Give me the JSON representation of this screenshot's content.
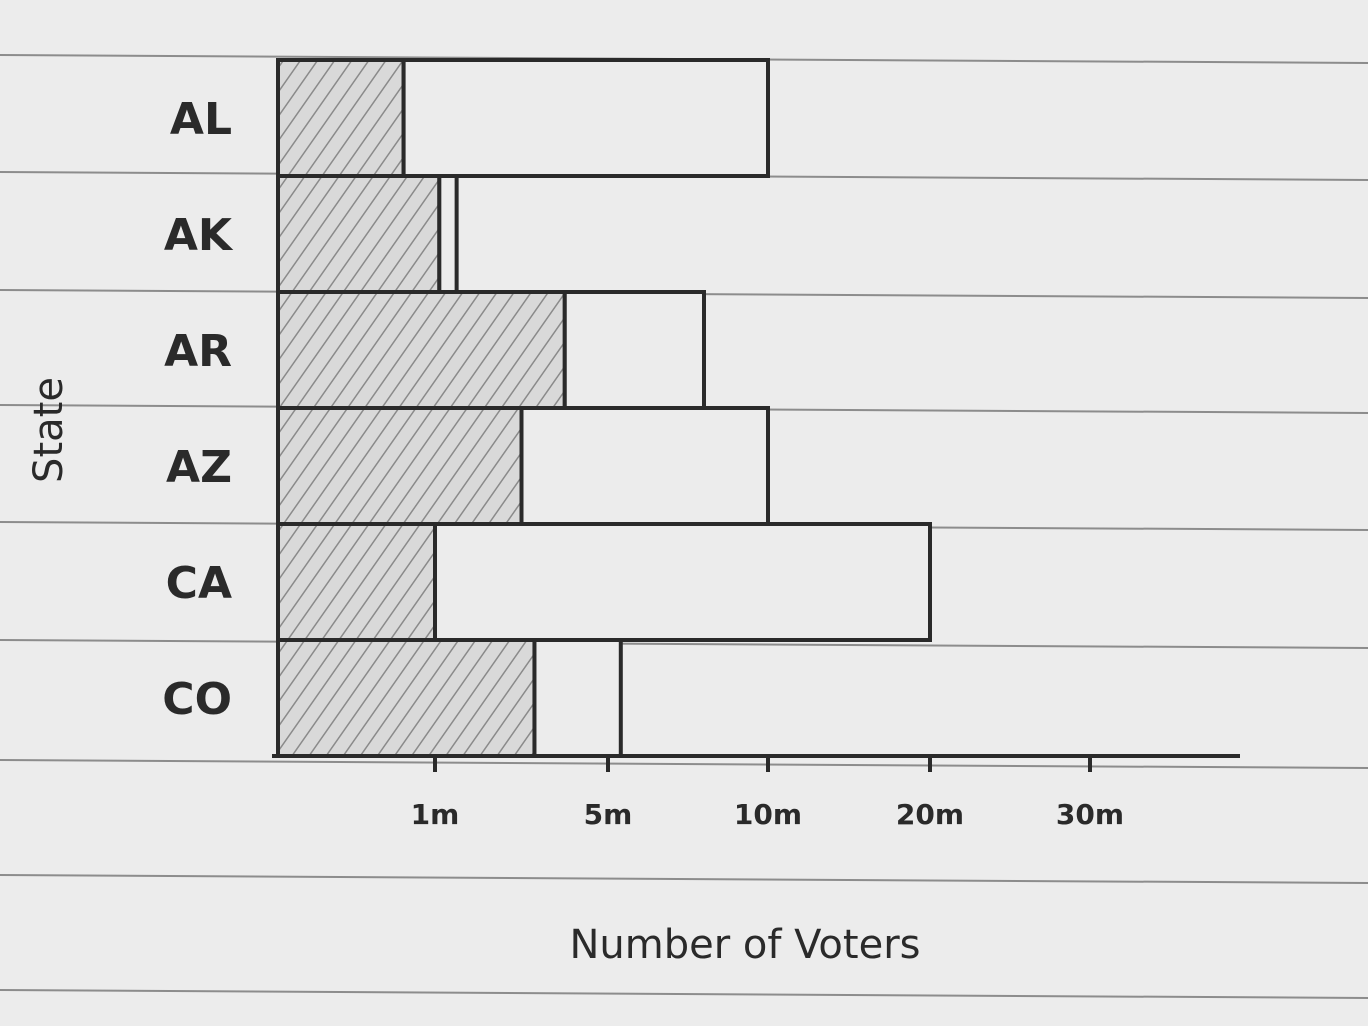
{
  "chart_data": {
    "type": "bar",
    "orientation": "horizontal",
    "stacked": true,
    "categories": [
      "AL",
      "AK",
      "AR",
      "AZ",
      "CA",
      "CO"
    ],
    "x_ticks": [
      "1m",
      "5m",
      "10m",
      "20m",
      "30m"
    ],
    "x_tick_values": [
      1,
      5,
      10,
      20,
      30
    ],
    "series": [
      {
        "values": [
          0.8,
          1.1,
          4.0,
          3.0,
          1.0,
          3.3
        ],
        "pattern": "hatched"
      },
      {
        "values": [
          9.2,
          0.4,
          4.0,
          7.0,
          19.0,
          2.1
        ],
        "pattern": "plain"
      }
    ],
    "totals": [
      10,
      1.5,
      8,
      10,
      20,
      5.4
    ],
    "xlabel": "Number of Voters",
    "ylabel": "State",
    "xlim": [
      0,
      33
    ],
    "grid": false,
    "legend": "none",
    "colors": {
      "ink": "#2a2a2a",
      "paper": "#ececec",
      "rule": "#4a4a4a",
      "hatch": "#d6d6d6"
    }
  }
}
